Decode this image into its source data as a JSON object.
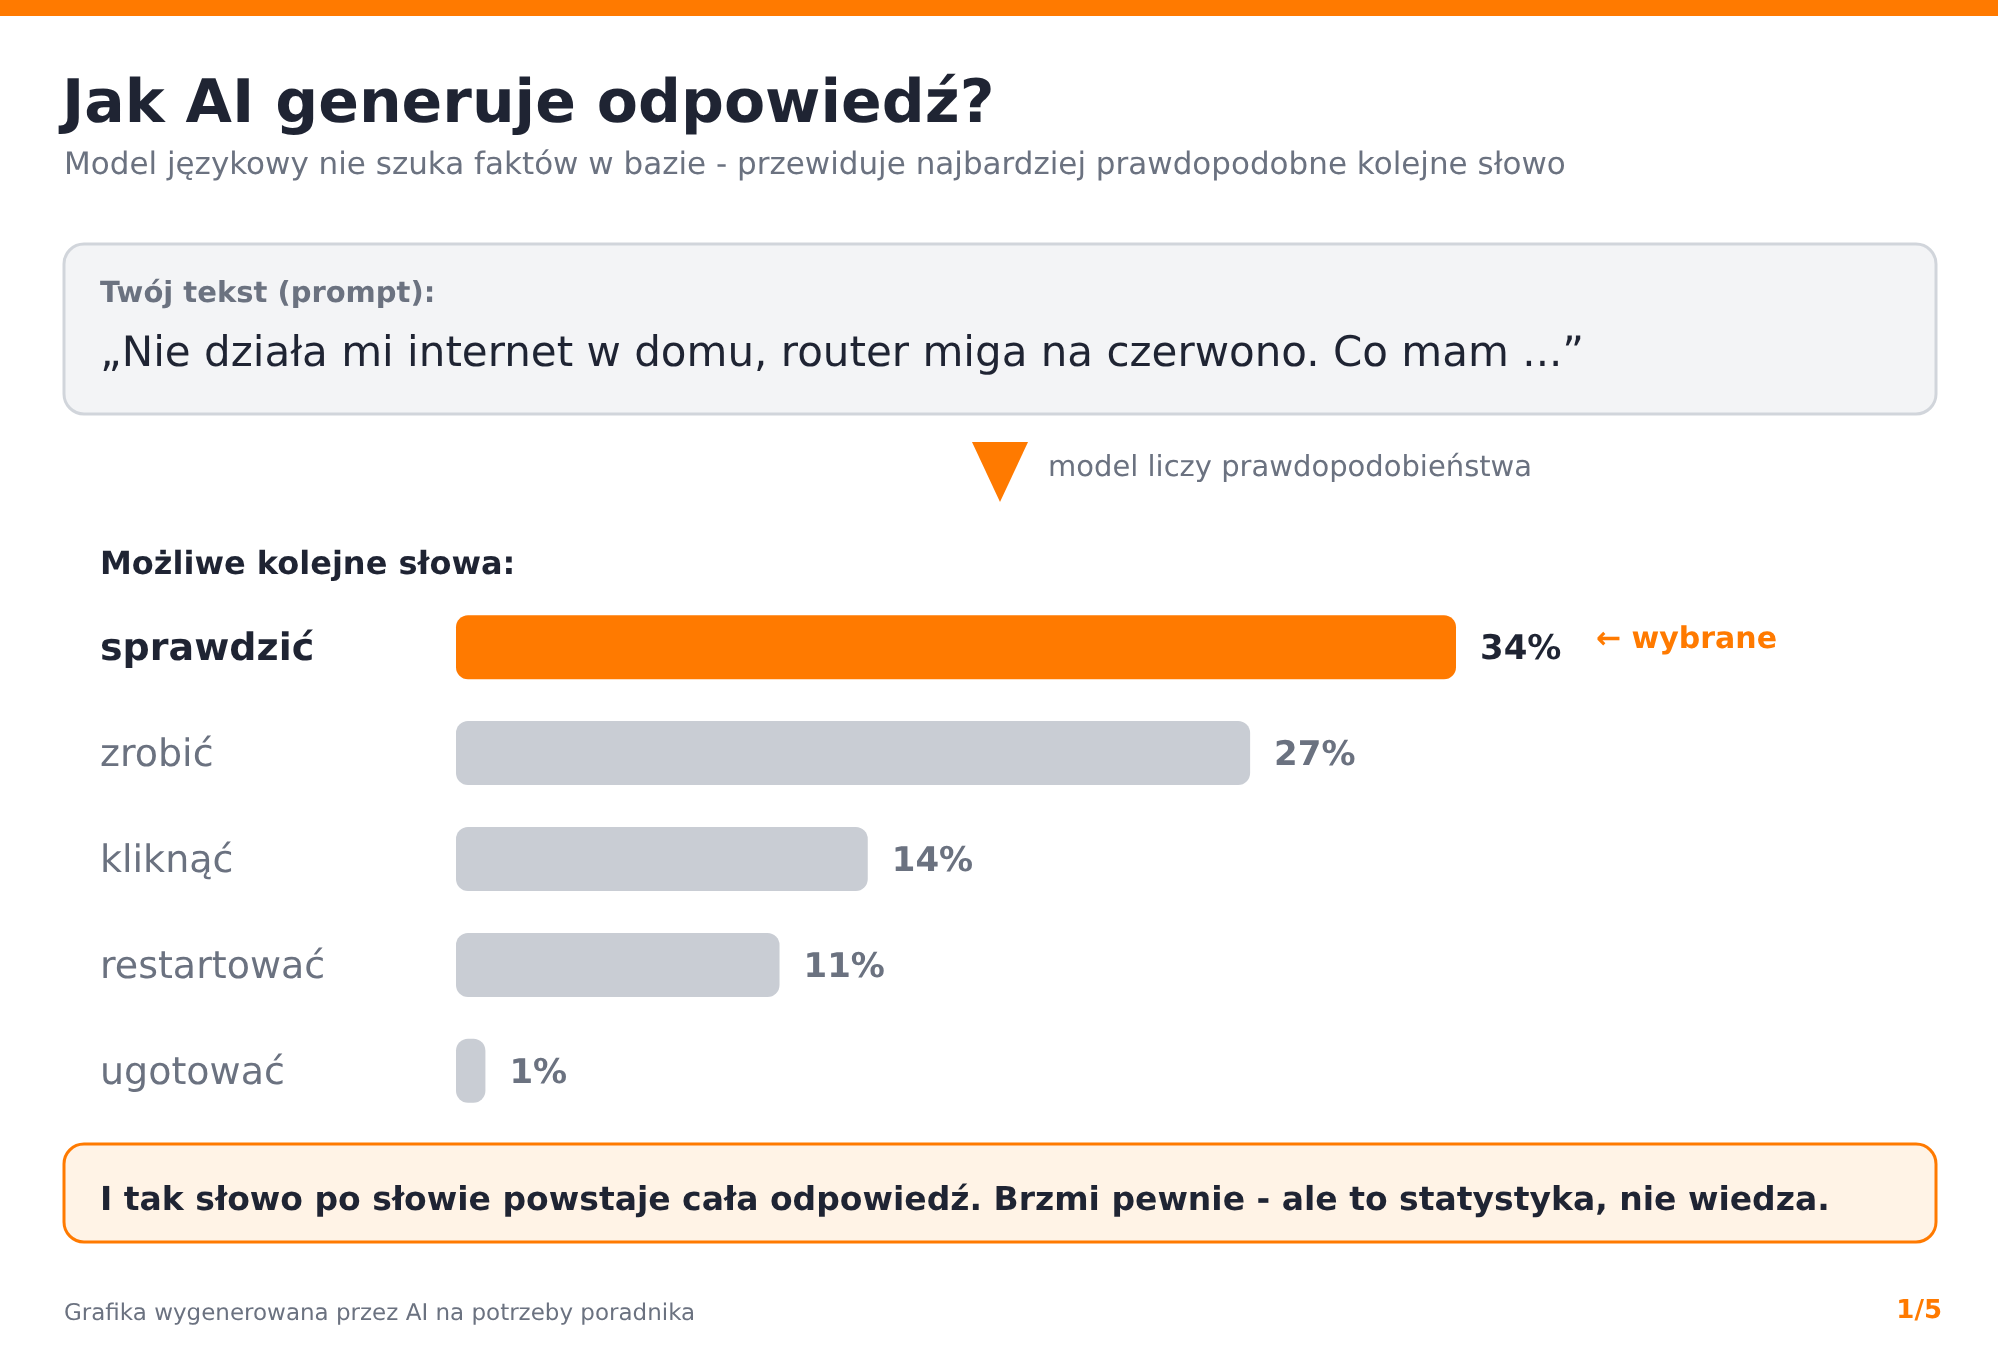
{
  "chart_data": {
    "type": "bar",
    "orientation": "horizontal",
    "title": "Jak AI generuje odpowiedź?",
    "subtitle": "Model językowy nie szuka faktów w bazie - przewiduje najbardziej prawdopodobne kolejne słowo",
    "categories": [
      "sprawdzić",
      "zrobić",
      "kliknąć",
      "restartować",
      "ugotować"
    ],
    "values": [
      34,
      27,
      14,
      11,
      1
    ],
    "colors": [
      "#ff7a00",
      "#c9cdd4",
      "#c9cdd4",
      "#c9cdd4",
      "#c9cdd4"
    ],
    "value_labels": [
      "34%",
      "27%",
      "14%",
      "11%",
      "1%"
    ],
    "annotations": [
      "Twój tekst (prompt):",
      "„Nie działa mi internet w domu, router miga na czerwono. Co mam ...”",
      "model liczy prawdopodobieństwa",
      "Możliwe kolejne słowa:",
      "← wybrane",
      "I tak słowo po słowie powstaje cała odpowiedź. Brzmi pewnie - ale to statystyka, nie wiedza.",
      "Grafika wygenerowana przez AI na potrzeby poradnika",
      "1/5"
    ]
  }
}
